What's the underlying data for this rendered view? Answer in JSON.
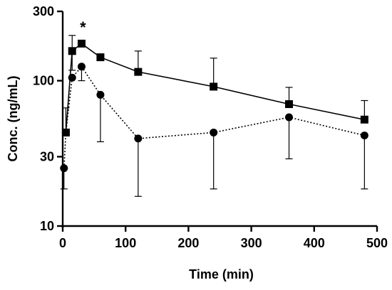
{
  "chart_data": {
    "type": "line",
    "xlabel": "Time (min)",
    "ylabel": "Conc. (ng/mL)",
    "yscale": "log",
    "xlim": [
      0,
      500
    ],
    "ylim": [
      10,
      300
    ],
    "xticks": [
      0,
      100,
      200,
      300,
      400,
      500
    ],
    "yticks": [
      10,
      30,
      100,
      300
    ],
    "xtick_labels": [
      "0",
      "100",
      "200",
      "300",
      "400",
      "500"
    ],
    "ytick_labels": [
      "10",
      "30",
      "100",
      "300"
    ],
    "grid": false,
    "legend": false,
    "annotations": [
      {
        "text": "*",
        "x": 30
      }
    ],
    "series": [
      {
        "marker": "square",
        "line_style": "solid",
        "x": [
          5,
          15,
          30,
          60,
          120,
          240,
          360,
          480
        ],
        "y": [
          44,
          160,
          180,
          145,
          115,
          91,
          69,
          54
        ],
        "err_upper": [
          null,
          205,
          null,
          null,
          160,
          143,
          90,
          73
        ],
        "err_lower": [
          null,
          118,
          null,
          null,
          null,
          null,
          null,
          null
        ]
      },
      {
        "marker": "circle",
        "line_style": "dotted",
        "x": [
          2,
          5,
          15,
          30,
          60,
          120,
          240,
          360,
          480
        ],
        "y": [
          25,
          44,
          105,
          125,
          80,
          40,
          44,
          56,
          42
        ],
        "err_upper": [
          null,
          65,
          null,
          null,
          null,
          null,
          null,
          null,
          null
        ],
        "err_lower": [
          18,
          null,
          null,
          100,
          38,
          16,
          18,
          29,
          18
        ]
      }
    ]
  }
}
